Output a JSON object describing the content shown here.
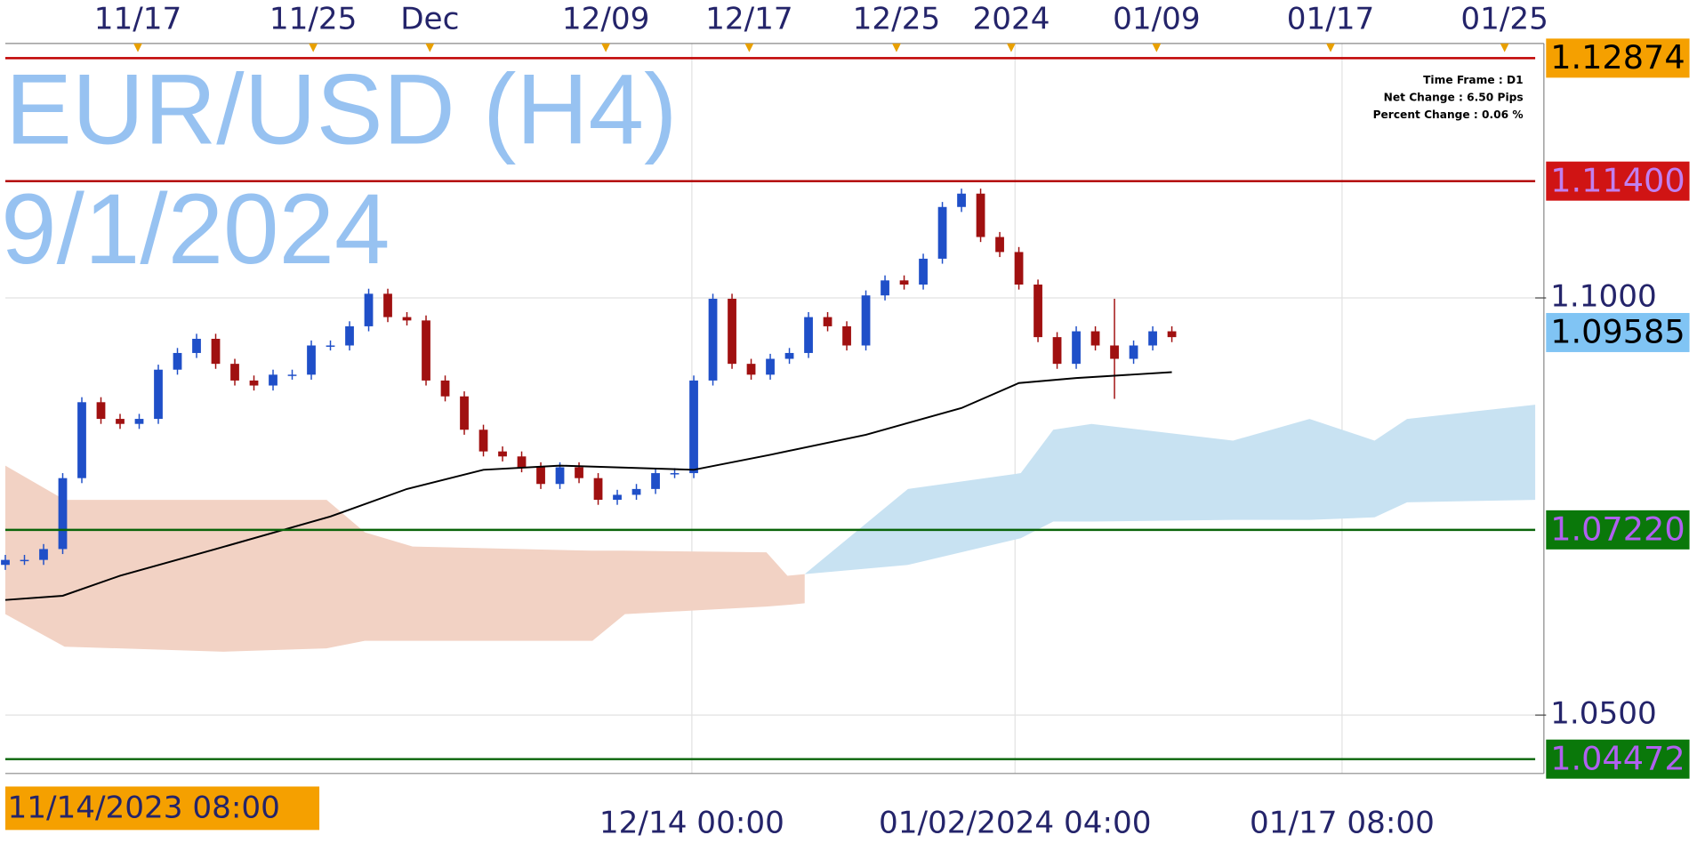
{
  "chart_data": {
    "type": "candlestick",
    "title": "EUR/USD (H4)",
    "subtitle": "9/1/2024",
    "info": [
      "Time Frame : D1",
      "Net Change : 6.50 Pips",
      "Percent Change : 0.06 %"
    ],
    "cursor_label": "11/14/2023 08:00",
    "up_color": "#1f4fc8",
    "down_color": "#a01010",
    "xlim": [
      0,
      80
    ],
    "ylim": [
      1.043,
      1.1305
    ],
    "yticks": [
      {
        "value": 1.1,
        "label": "1.1000"
      },
      {
        "value": 1.05,
        "label": "1.0500"
      }
    ],
    "xticks": [
      {
        "value": 6.93,
        "label": "11/17"
      },
      {
        "value": 16.1,
        "label": "11/25"
      },
      {
        "value": 22.2,
        "label": "Dec"
      },
      {
        "value": 31.4,
        "label": "12/09"
      },
      {
        "value": 38.9,
        "label": "12/17"
      },
      {
        "value": 46.6,
        "label": "12/25"
      },
      {
        "value": 52.6,
        "label": "2024"
      },
      {
        "value": 60.2,
        "label": "01/09"
      },
      {
        "value": 69.3,
        "label": "01/17"
      },
      {
        "value": 78.4,
        "label": "01/25"
      }
    ],
    "x2ticks": [
      {
        "value": 35.9,
        "label": "12/14 00:00"
      },
      {
        "value": 52.8,
        "label": "01/02/2024 04:00"
      },
      {
        "value": 69.9,
        "label": "01/17 08:00"
      }
    ],
    "open": [
      1.068,
      1.0686,
      1.0686,
      1.0699,
      1.0784,
      1.0875,
      1.0855,
      1.0849,
      1.0855,
      1.0914,
      1.0934,
      1.0951,
      1.0921,
      1.0901,
      1.0895,
      1.0908,
      1.0908,
      1.0943,
      1.0943,
      1.0966,
      1.1005,
      1.0977,
      1.0973,
      1.0901,
      1.0882,
      1.0842,
      1.0816,
      1.081,
      1.0797,
      1.0777,
      1.0797,
      1.0784,
      1.0758,
      1.0764,
      1.0771,
      1.079,
      1.079,
      1.0901,
      1.0999,
      1.0921,
      1.0908,
      1.0927,
      1.0934,
      1.0977,
      1.0966,
      1.0943,
      1.1003,
      1.1021,
      1.1016,
      1.1047,
      1.1109,
      1.1125,
      1.1073,
      1.1055,
      1.1016,
      1.0953,
      1.0921,
      1.096,
      1.0943,
      1.0927,
      1.0943,
      1.096
    ],
    "high": [
      1.0692,
      1.0692,
      1.0705,
      1.079,
      1.0881,
      1.0881,
      1.0861,
      1.0861,
      1.092,
      1.094,
      1.0957,
      1.0957,
      1.0927,
      1.0907,
      1.0914,
      1.0914,
      1.0949,
      1.0949,
      1.0972,
      1.1011,
      1.1011,
      1.0983,
      1.0979,
      1.0907,
      1.0888,
      1.0848,
      1.0822,
      1.0816,
      1.0803,
      1.0803,
      1.0803,
      1.079,
      1.077,
      1.0777,
      1.0796,
      1.0796,
      1.0907,
      1.1005,
      1.1005,
      1.0927,
      1.0933,
      1.094,
      1.0983,
      1.0983,
      1.0972,
      1.1009,
      1.1027,
      1.1027,
      1.1053,
      1.1115,
      1.1131,
      1.1131,
      1.1079,
      1.1061,
      1.1022,
      1.0959,
      1.0966,
      1.0966,
      1.0999,
      1.0949,
      1.0966,
      1.0966
    ],
    "low": [
      1.0674,
      1.068,
      1.068,
      1.0693,
      1.0778,
      1.0849,
      1.0843,
      1.0843,
      1.0849,
      1.0908,
      1.0928,
      1.0915,
      1.0895,
      1.0889,
      1.0889,
      1.0902,
      1.0902,
      1.0937,
      1.0937,
      1.096,
      1.0971,
      1.0967,
      1.0895,
      1.0876,
      1.0836,
      1.081,
      1.0804,
      1.0791,
      1.0771,
      1.0771,
      1.0778,
      1.0752,
      1.0752,
      1.0758,
      1.0765,
      1.0784,
      1.0784,
      1.0895,
      1.0915,
      1.0902,
      1.0902,
      1.0921,
      1.0928,
      1.096,
      1.0937,
      1.0937,
      1.0997,
      1.101,
      1.101,
      1.1041,
      1.1103,
      1.1067,
      1.1049,
      1.101,
      1.0947,
      1.0915,
      1.0915,
      1.0937,
      1.0879,
      1.0921,
      1.0937,
      1.0947
    ],
    "close": [
      1.0686,
      1.0686,
      1.0699,
      1.0784,
      1.0875,
      1.0855,
      1.0849,
      1.0855,
      1.0914,
      1.0934,
      1.0951,
      1.0921,
      1.0901,
      1.0895,
      1.0908,
      1.0908,
      1.0943,
      1.0943,
      1.0966,
      1.1005,
      1.0977,
      1.0973,
      1.0901,
      1.0882,
      1.0842,
      1.0816,
      1.081,
      1.0797,
      1.0777,
      1.0797,
      1.0784,
      1.0758,
      1.0764,
      1.0771,
      1.079,
      1.079,
      1.0901,
      1.0999,
      1.0921,
      1.0908,
      1.0927,
      1.0934,
      1.0977,
      1.0966,
      1.0943,
      1.1003,
      1.1021,
      1.1016,
      1.1047,
      1.1109,
      1.1125,
      1.1073,
      1.1055,
      1.1016,
      1.0953,
      1.0921,
      1.096,
      1.0943,
      1.0927,
      1.0943,
      1.096,
      1.0953
    ],
    "moving_average": {
      "color": "#000000",
      "x": [
        0,
        3,
        6,
        11,
        17,
        21,
        25,
        29,
        36,
        40,
        45,
        50,
        53,
        56,
        61
      ],
      "values": [
        1.0638,
        1.0643,
        1.0667,
        1.0699,
        1.0738,
        1.0771,
        1.0794,
        1.0799,
        1.0794,
        1.0812,
        1.0836,
        1.0868,
        1.0898,
        1.0904,
        1.0911
      ]
    },
    "clouds": [
      {
        "color": "#f2d2c4",
        "x": [
          0,
          3.1,
          11.4,
          16.8,
          18.8,
          21.3,
          30.7,
          32.4,
          39.8,
          40.9,
          41.8
        ],
        "upper": [
          1.0799,
          1.0758,
          1.0758,
          1.0758,
          1.0719,
          1.0702,
          1.0697,
          1.0697,
          1.0695,
          1.0667,
          1.0669
        ],
        "lower": [
          1.0621,
          1.0582,
          1.0576,
          1.058,
          1.0589,
          1.0589,
          1.0589,
          1.0621,
          1.063,
          1.0632,
          1.0634
        ]
      },
      {
        "color": "#c8e2f2",
        "x": [
          41.8,
          47.2,
          53.1,
          54.8,
          56.8,
          64.2,
          68.2,
          71.6,
          73.3,
          80
        ],
        "upper": [
          1.0669,
          1.0771,
          1.079,
          1.0842,
          1.0849,
          1.0829,
          1.0855,
          1.0829,
          1.0855,
          1.0872
        ],
        "lower": [
          1.0669,
          1.068,
          1.0712,
          1.0732,
          1.0732,
          1.0734,
          1.0734,
          1.0737,
          1.0755,
          1.0758
        ]
      }
    ],
    "levels": [
      {
        "value": 1.12874,
        "label": "1.12874",
        "line_color": "#c00000",
        "box_color": "#f5a000",
        "text_color": "#000000"
      },
      {
        "value": 1.114,
        "label": "1.11400",
        "line_color": "#b00000",
        "box_color": "#d01414",
        "text_color": "#c080f0"
      },
      {
        "value": 1.09585,
        "label": "1.09585",
        "box_color": "#80c4f4",
        "text_color": "#000000"
      },
      {
        "value": 1.0722,
        "label": "1.07220",
        "line_color": "#0a640a",
        "box_color": "#0a780a",
        "text_color": "#b060f0"
      },
      {
        "value": 1.04472,
        "label": "1.04472",
        "line_color": "#0a640a",
        "box_color": "#0a780a",
        "text_color": "#b060f0"
      }
    ]
  }
}
